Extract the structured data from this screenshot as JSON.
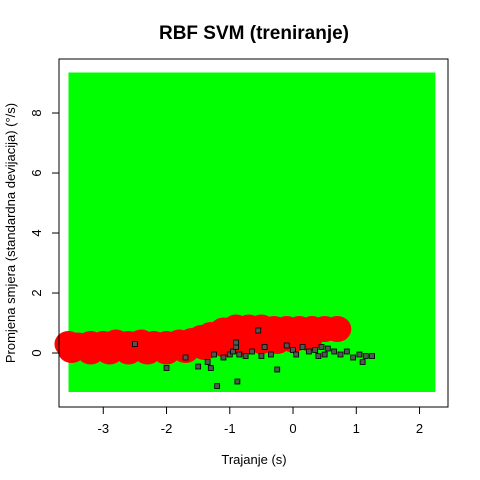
{
  "chart_data": {
    "type": "scatter",
    "title": "RBF SVM (treniranje)",
    "xlabel": "Trajanje (s)",
    "ylabel": "Promjena smjera (standardna devijacija) (°/s)",
    "xlim": [
      -3.7,
      2.45
    ],
    "ylim": [
      -1.8,
      9.8
    ],
    "xticks": [
      -3,
      -2,
      -1,
      0,
      1,
      2
    ],
    "yticks": [
      0,
      2,
      4,
      6,
      8
    ],
    "background_region": {
      "x": [
        -3.55,
        2.25
      ],
      "y": [
        -1.3,
        9.35
      ],
      "color": "#00ff00"
    },
    "decision_region_color": "#ff0000",
    "decision_region_blobs": [
      {
        "x": -3.55,
        "y": 0.3
      },
      {
        "x": -3.4,
        "y": 0.25
      },
      {
        "x": -3.2,
        "y": 0.3
      },
      {
        "x": -3.0,
        "y": 0.3
      },
      {
        "x": -2.8,
        "y": 0.35
      },
      {
        "x": -2.6,
        "y": 0.3
      },
      {
        "x": -2.4,
        "y": 0.35
      },
      {
        "x": -2.2,
        "y": 0.3
      },
      {
        "x": -2.0,
        "y": 0.3
      },
      {
        "x": -1.8,
        "y": 0.35
      },
      {
        "x": -1.6,
        "y": 0.4
      },
      {
        "x": -1.45,
        "y": 0.5
      },
      {
        "x": -1.3,
        "y": 0.6
      },
      {
        "x": -1.1,
        "y": 0.75
      },
      {
        "x": -0.9,
        "y": 0.85
      },
      {
        "x": -0.7,
        "y": 0.85
      },
      {
        "x": -0.5,
        "y": 0.85
      },
      {
        "x": -0.3,
        "y": 0.8
      },
      {
        "x": -0.1,
        "y": 0.8
      },
      {
        "x": 0.1,
        "y": 0.8
      },
      {
        "x": 0.3,
        "y": 0.8
      },
      {
        "x": 0.5,
        "y": 0.8
      },
      {
        "x": 0.7,
        "y": 0.8
      },
      {
        "x": -3.5,
        "y": 0.1
      },
      {
        "x": -3.2,
        "y": 0.05
      },
      {
        "x": -2.9,
        "y": 0.05
      },
      {
        "x": -2.6,
        "y": 0.05
      },
      {
        "x": -2.3,
        "y": 0.05
      },
      {
        "x": -2.0,
        "y": 0.05
      },
      {
        "x": -1.7,
        "y": 0.1
      },
      {
        "x": -1.4,
        "y": 0.2
      },
      {
        "x": -1.1,
        "y": 0.3
      },
      {
        "x": -0.8,
        "y": 0.35
      },
      {
        "x": -0.5,
        "y": 0.4
      },
      {
        "x": -0.25,
        "y": 0.4
      },
      {
        "x": 0.0,
        "y": 0.45
      },
      {
        "x": 0.25,
        "y": 0.5
      }
    ],
    "points": [
      {
        "x": -2.5,
        "y": 0.3
      },
      {
        "x": -2.0,
        "y": -0.5
      },
      {
        "x": -1.7,
        "y": -0.15
      },
      {
        "x": -1.5,
        "y": -0.45
      },
      {
        "x": -1.35,
        "y": -0.3
      },
      {
        "x": -1.3,
        "y": -0.5
      },
      {
        "x": -1.25,
        "y": -0.05
      },
      {
        "x": -1.2,
        "y": -1.1
      },
      {
        "x": -1.1,
        "y": -0.15
      },
      {
        "x": -1.0,
        "y": -0.05
      },
      {
        "x": -0.95,
        "y": 0.05
      },
      {
        "x": -0.9,
        "y": 0.2
      },
      {
        "x": -0.9,
        "y": 0.35
      },
      {
        "x": -0.88,
        "y": -0.95
      },
      {
        "x": -0.85,
        "y": -0.05
      },
      {
        "x": -0.75,
        "y": -0.1
      },
      {
        "x": -0.65,
        "y": 0.05
      },
      {
        "x": -0.55,
        "y": 0.75
      },
      {
        "x": -0.5,
        "y": -0.1
      },
      {
        "x": -0.45,
        "y": 0.2
      },
      {
        "x": -0.35,
        "y": -0.05
      },
      {
        "x": -0.25,
        "y": -0.55
      },
      {
        "x": -0.1,
        "y": 0.25
      },
      {
        "x": 0.0,
        "y": 0.1
      },
      {
        "x": 0.05,
        "y": -0.05
      },
      {
        "x": 0.15,
        "y": 0.2
      },
      {
        "x": 0.25,
        "y": 0.05
      },
      {
        "x": 0.35,
        "y": 0.1
      },
      {
        "x": 0.4,
        "y": -0.1
      },
      {
        "x": 0.45,
        "y": 0.2
      },
      {
        "x": 0.5,
        "y": -0.05
      },
      {
        "x": 0.55,
        "y": 0.15
      },
      {
        "x": 0.65,
        "y": 0.05
      },
      {
        "x": 0.75,
        "y": -0.05
      },
      {
        "x": 0.85,
        "y": 0.05
      },
      {
        "x": 0.95,
        "y": -0.15
      },
      {
        "x": 1.05,
        "y": -0.05
      },
      {
        "x": 1.1,
        "y": -0.3
      },
      {
        "x": 1.15,
        "y": -0.1
      },
      {
        "x": 1.25,
        "y": -0.1
      }
    ],
    "point_fill": "#555555",
    "point_stroke": "#000000",
    "grid": false,
    "legend": "none"
  }
}
